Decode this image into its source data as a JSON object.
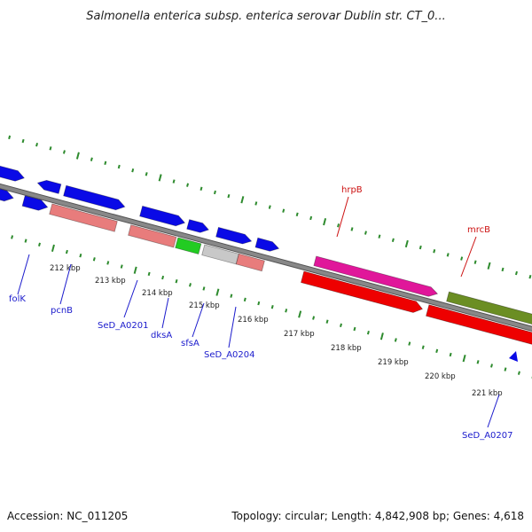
{
  "title": "Salmonella enterica subsp. enterica serovar Dublin str. CT_0...",
  "footer": {
    "accession": "Accession: NC_011205",
    "summary": "Topology: circular; Length: 4,842,908 bp; Genes: 4,618"
  },
  "colors": {
    "backbone": "#888888",
    "tick": "#2e8b2e",
    "label_blue": "#1a1acc",
    "label_red": "#cc1111",
    "gene_blue": "#0a0ae6",
    "gene_salmon": "#e87c7c",
    "gene_green": "#22cc22",
    "gene_gray": "#c8c8c8",
    "gene_magenta": "#e0179a",
    "gene_red": "#ee0000",
    "gene_olive": "#6b8e23"
  },
  "ticks": [
    "212 kbp",
    "213 kbp",
    "214 kbp",
    "215 kbp",
    "216 kbp",
    "217 kbp",
    "218 kbp",
    "219 kbp",
    "220 kbp",
    "221 kbp"
  ],
  "genes": [
    {
      "name": "folK",
      "color": "blue"
    },
    {
      "name": "pcnB",
      "color": "blue"
    },
    {
      "name": "SeD_A0201",
      "color": "blue"
    },
    {
      "name": "dksA",
      "color": "blue"
    },
    {
      "name": "sfsA",
      "color": "blue"
    },
    {
      "name": "SeD_A0204",
      "color": "blue"
    },
    {
      "name": "hrpB",
      "color": "red"
    },
    {
      "name": "mrcB",
      "color": "red"
    },
    {
      "name": "SeD_A0207",
      "color": "blue"
    }
  ]
}
